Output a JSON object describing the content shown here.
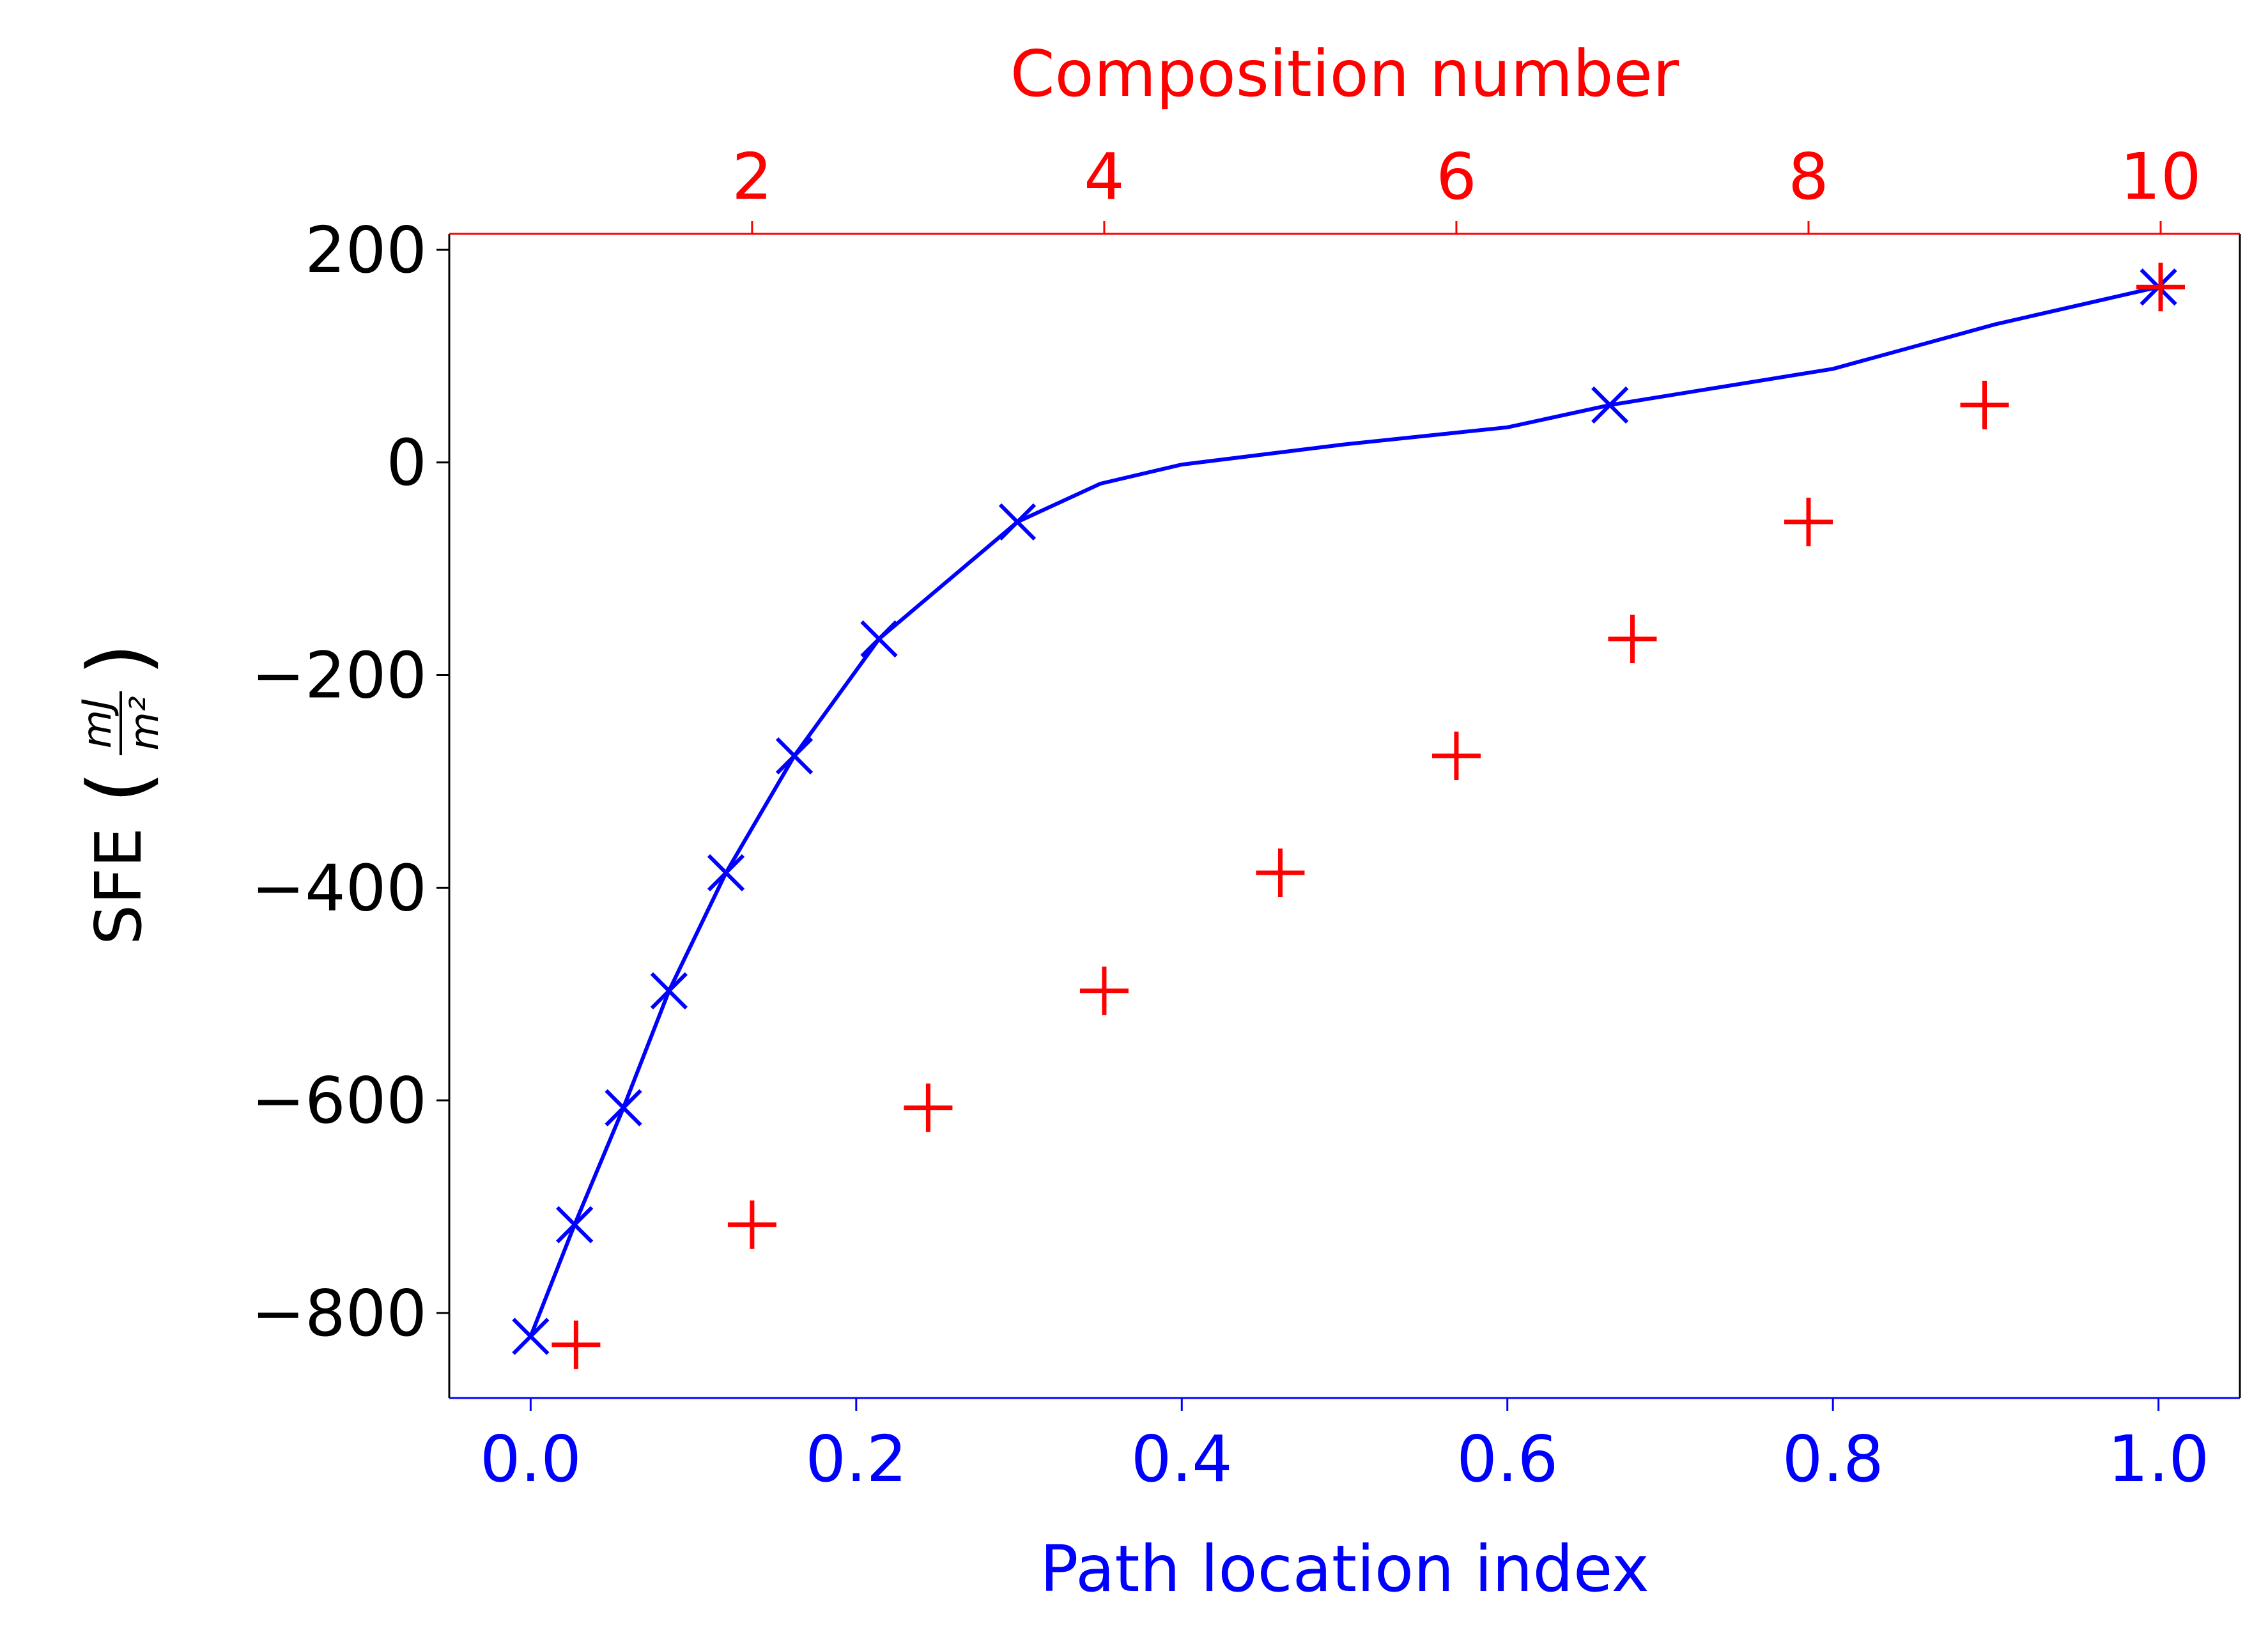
{
  "chart_data": {
    "type": "scatter",
    "left_axis": {
      "label_main": "SFE",
      "label_unit_num": "mJ",
      "label_unit_den": "m²",
      "ylim": [
        -880,
        215
      ],
      "ticks": [
        200,
        0,
        -200,
        -400,
        -600,
        -800
      ],
      "tick_labels": [
        "200",
        "0",
        "−200",
        "−400",
        "−600",
        "−800"
      ],
      "color": "#000000"
    },
    "bottom_axis": {
      "label": "Path location index",
      "xlim": [
        -0.05,
        1.05
      ],
      "ticks": [
        0.0,
        0.2,
        0.4,
        0.6,
        0.8,
        1.0
      ],
      "tick_labels": [
        "0.0",
        "0.2",
        "0.4",
        "0.6",
        "0.8",
        "1.0"
      ],
      "color": "#0000ff"
    },
    "top_axis": {
      "label": "Composition number",
      "xlim": [
        0.28,
        10.45
      ],
      "ticks": [
        2,
        4,
        6,
        8,
        10
      ],
      "tick_labels": [
        "2",
        "4",
        "6",
        "8",
        "10"
      ],
      "color": "#ff0000"
    },
    "series": [
      {
        "axis": "bottom",
        "marker": "x",
        "color": "#0000ff",
        "points": [
          [
            0.0,
            -822
          ],
          [
            0.027,
            -717
          ],
          [
            0.057,
            -607
          ],
          [
            0.085,
            -497
          ],
          [
            0.12,
            -386
          ],
          [
            0.162,
            -276
          ],
          [
            0.214,
            -166
          ],
          [
            0.299,
            -56
          ],
          [
            0.663,
            54
          ],
          [
            1.0,
            165
          ]
        ]
      },
      {
        "axis": "bottom",
        "marker": "line",
        "color": "#0000ff",
        "points": [
          [
            0.0,
            -822
          ],
          [
            0.027,
            -717
          ],
          [
            0.057,
            -607
          ],
          [
            0.085,
            -497
          ],
          [
            0.12,
            -386
          ],
          [
            0.162,
            -276
          ],
          [
            0.214,
            -166
          ],
          [
            0.299,
            -56
          ],
          [
            0.35,
            -20
          ],
          [
            0.4,
            -2
          ],
          [
            0.5,
            17
          ],
          [
            0.6,
            33
          ],
          [
            0.663,
            54
          ],
          [
            0.8,
            88
          ],
          [
            0.9,
            130
          ],
          [
            1.0,
            165
          ]
        ]
      },
      {
        "axis": "top",
        "marker": "+",
        "color": "#ff0000",
        "points": [
          [
            1,
            -830
          ],
          [
            2,
            -717
          ],
          [
            3,
            -607
          ],
          [
            4,
            -497
          ],
          [
            5,
            -386
          ],
          [
            6,
            -276
          ],
          [
            7,
            -166
          ],
          [
            8,
            -56
          ],
          [
            9,
            54
          ],
          [
            10,
            165
          ]
        ]
      }
    ],
    "grid": false
  }
}
